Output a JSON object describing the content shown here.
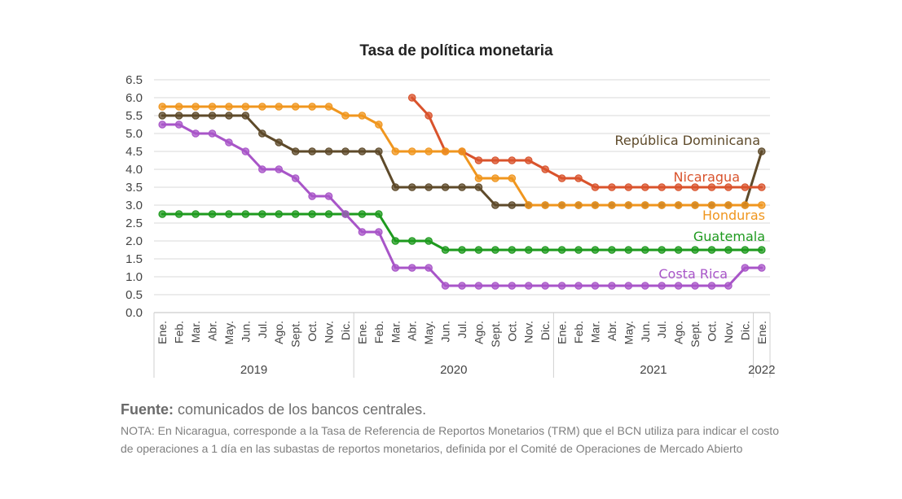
{
  "chart_data": {
    "type": "line",
    "title": "Tasa de política monetaria",
    "ylim": [
      0.0,
      6.5
    ],
    "yticks": [
      "0.0",
      "0.5",
      "1.0",
      "1.5",
      "2.0",
      "2.5",
      "3.0",
      "3.5",
      "4.0",
      "4.5",
      "5.0",
      "5.5",
      "6.0",
      "6.5"
    ],
    "grid": true,
    "categories": [
      "Ene.",
      "Feb.",
      "Mar.",
      "Abr.",
      "May.",
      "Jun.",
      "Jul.",
      "Ago.",
      "Sept.",
      "Oct.",
      "Nov.",
      "Dic.",
      "Ene.",
      "Feb.",
      "Mar.",
      "Abr.",
      "May.",
      "Jun.",
      "Jul.",
      "Ago.",
      "Sept.",
      "Oct.",
      "Nov.",
      "Dic.",
      "Ene.",
      "Feb.",
      "Mar.",
      "Abr.",
      "May.",
      "Jun.",
      "Jul.",
      "Ago.",
      "Sept.",
      "Oct.",
      "Nov.",
      "Dic.",
      "Ene."
    ],
    "years": [
      {
        "label": "2019",
        "start": 0,
        "end": 11
      },
      {
        "label": "2020",
        "start": 12,
        "end": 23
      },
      {
        "label": "2021",
        "start": 24,
        "end": 35
      },
      {
        "label": "2022",
        "start": 36,
        "end": 36
      }
    ],
    "series": [
      {
        "name": "República Dominicana",
        "color": "#5e4a2a",
        "values": [
          5.5,
          5.5,
          5.5,
          5.5,
          5.5,
          5.5,
          5.0,
          4.75,
          4.5,
          4.5,
          4.5,
          4.5,
          4.5,
          4.5,
          3.5,
          3.5,
          3.5,
          3.5,
          3.5,
          3.5,
          3.0,
          3.0,
          3.0,
          3.0,
          3.0,
          3.0,
          3.0,
          3.0,
          3.0,
          3.0,
          3.0,
          3.0,
          3.0,
          3.0,
          3.0,
          3.0,
          4.5
        ]
      },
      {
        "name": "Nicaragua",
        "color": "#d9532c",
        "values": [
          null,
          null,
          null,
          null,
          null,
          null,
          null,
          null,
          null,
          null,
          null,
          null,
          null,
          null,
          null,
          6.0,
          5.5,
          4.5,
          4.5,
          4.25,
          4.25,
          4.25,
          4.25,
          4.0,
          3.75,
          3.75,
          3.5,
          3.5,
          3.5,
          3.5,
          3.5,
          3.5,
          3.5,
          3.5,
          3.5,
          3.5,
          3.5
        ]
      },
      {
        "name": "Honduras",
        "color": "#f0961e",
        "values": [
          5.75,
          5.75,
          5.75,
          5.75,
          5.75,
          5.75,
          5.75,
          5.75,
          5.75,
          5.75,
          5.75,
          5.5,
          5.5,
          5.25,
          4.5,
          4.5,
          4.5,
          4.5,
          4.5,
          3.75,
          3.75,
          3.75,
          3.0,
          3.0,
          3.0,
          3.0,
          3.0,
          3.0,
          3.0,
          3.0,
          3.0,
          3.0,
          3.0,
          3.0,
          3.0,
          3.0,
          3.0
        ]
      },
      {
        "name": "Guatemala",
        "color": "#1e9a1e",
        "values": [
          2.75,
          2.75,
          2.75,
          2.75,
          2.75,
          2.75,
          2.75,
          2.75,
          2.75,
          2.75,
          2.75,
          2.75,
          2.75,
          2.75,
          2.0,
          2.0,
          2.0,
          1.75,
          1.75,
          1.75,
          1.75,
          1.75,
          1.75,
          1.75,
          1.75,
          1.75,
          1.75,
          1.75,
          1.75,
          1.75,
          1.75,
          1.75,
          1.75,
          1.75,
          1.75,
          1.75,
          1.75
        ]
      },
      {
        "name": "Costa Rica",
        "color": "#a855c8",
        "values": [
          5.25,
          5.25,
          5.0,
          5.0,
          4.75,
          4.5,
          4.0,
          4.0,
          3.75,
          3.25,
          3.25,
          2.75,
          2.25,
          2.25,
          1.25,
          1.25,
          1.25,
          0.75,
          0.75,
          0.75,
          0.75,
          0.75,
          0.75,
          0.75,
          0.75,
          0.75,
          0.75,
          0.75,
          0.75,
          0.75,
          0.75,
          0.75,
          0.75,
          0.75,
          0.75,
          1.25,
          1.25
        ]
      }
    ],
    "labels": {
      "rd": "República Dominicana",
      "ni": "Nicaragua",
      "hn": "Honduras",
      "gt": "Guatemala",
      "cr": "Costa Rica"
    }
  },
  "footer": {
    "source_bold": "Fuente:",
    "source_text": " comunicados de los bancos centrales.",
    "note": "NOTA: En Nicaragua, corresponde a la Tasa de Referencia de Reportos Monetarios (TRM) que el BCN utiliza para indicar el costo de operaciones a 1 día en las subastas de reportos monetarios, definida por el Comité de Operaciones de Mercado Abierto"
  }
}
